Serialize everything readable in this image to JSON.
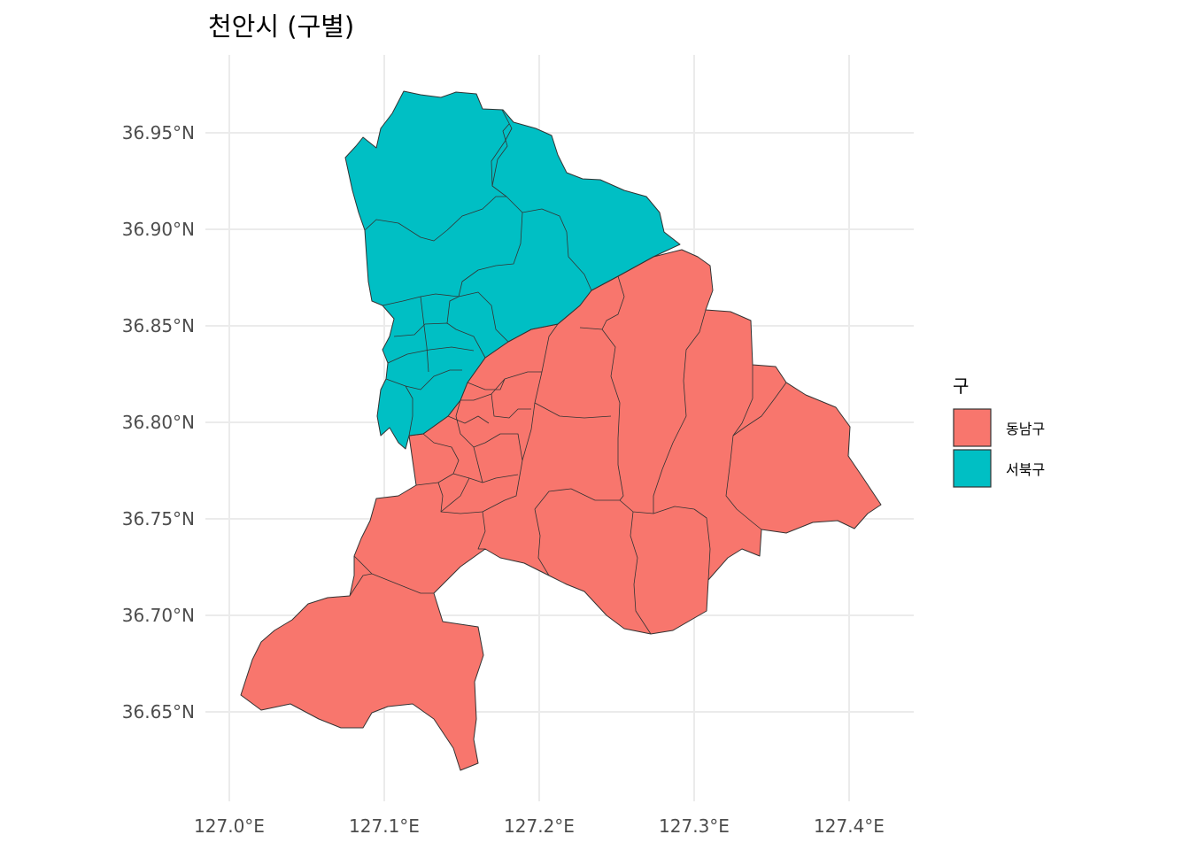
{
  "map": {
    "title": "천안시 (구별)",
    "x_ticks": [
      "127.0°E",
      "127.1°E",
      "127.2°E",
      "127.3°E",
      "127.4°E"
    ],
    "y_ticks": [
      "36.95°N",
      "36.90°N",
      "36.85°N",
      "36.80°N",
      "36.75°N",
      "36.70°N",
      "36.65°N"
    ],
    "legend": {
      "title": "구",
      "items": [
        {
          "label": "동남구",
          "color": "#F8766D"
        },
        {
          "label": "서북구",
          "color": "#00BFC4"
        }
      ]
    },
    "regions": [
      {
        "name": "동남구",
        "color": "#F8766D"
      },
      {
        "name": "서북구",
        "color": "#00BFC4"
      }
    ]
  }
}
